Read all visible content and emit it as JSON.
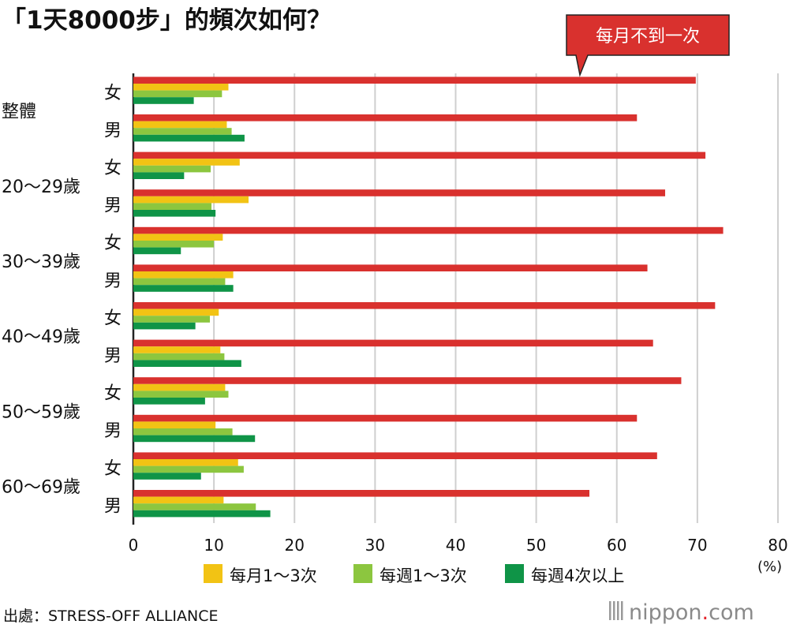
{
  "chart_data": {
    "type": "bar",
    "orientation": "horizontal",
    "title": "「1天8000步」的頻次如何？",
    "xlim": [
      0,
      80
    ],
    "xticks": [
      0,
      10,
      20,
      30,
      40,
      50,
      60,
      70,
      80
    ],
    "x_unit": "(%)",
    "grid": true,
    "legend_position": "bottom",
    "groups": [
      {
        "label": "整體",
        "rows": [
          {
            "sex": "女",
            "values": [
              69.8,
              11.8,
              11.0,
              7.5
            ]
          },
          {
            "sex": "男",
            "values": [
              62.5,
              11.6,
              12.2,
              13.8
            ]
          }
        ]
      },
      {
        "label": "20～29歲",
        "rows": [
          {
            "sex": "女",
            "values": [
              71.0,
              13.2,
              9.6,
              6.3
            ]
          },
          {
            "sex": "男",
            "values": [
              66.0,
              14.3,
              9.7,
              10.2
            ]
          }
        ]
      },
      {
        "label": "30～39歲",
        "rows": [
          {
            "sex": "女",
            "values": [
              73.2,
              11.1,
              10.0,
              5.9
            ]
          },
          {
            "sex": "男",
            "values": [
              63.8,
              12.4,
              11.4,
              12.4
            ]
          }
        ]
      },
      {
        "label": "40～49歲",
        "rows": [
          {
            "sex": "女",
            "values": [
              72.2,
              10.6,
              9.5,
              7.7
            ]
          },
          {
            "sex": "男",
            "values": [
              64.5,
              10.8,
              11.3,
              13.4
            ]
          }
        ]
      },
      {
        "label": "50～59歲",
        "rows": [
          {
            "sex": "女",
            "values": [
              68.0,
              11.4,
              11.8,
              8.9
            ]
          },
          {
            "sex": "男",
            "values": [
              62.5,
              10.2,
              12.3,
              15.1
            ]
          }
        ]
      },
      {
        "label": "60～69歲",
        "rows": [
          {
            "sex": "女",
            "values": [
              65.0,
              13.0,
              13.7,
              8.4
            ]
          },
          {
            "sex": "男",
            "values": [
              56.6,
              11.2,
              15.2,
              17.0
            ]
          }
        ]
      }
    ],
    "series": [
      {
        "name": "每月不到一次",
        "color": "#d9312e"
      },
      {
        "name": "每月1～3次",
        "color": "#f2c314"
      },
      {
        "name": "每週1～3次",
        "color": "#8cc63f"
      },
      {
        "name": "每週4次以上",
        "color": "#0f9447"
      }
    ],
    "callout": "每月不到一次",
    "source": "出處：STRESS-OFF ALLIANCE",
    "brand": {
      "name": "nippon",
      "dot": ".",
      "suffix": "com"
    }
  }
}
